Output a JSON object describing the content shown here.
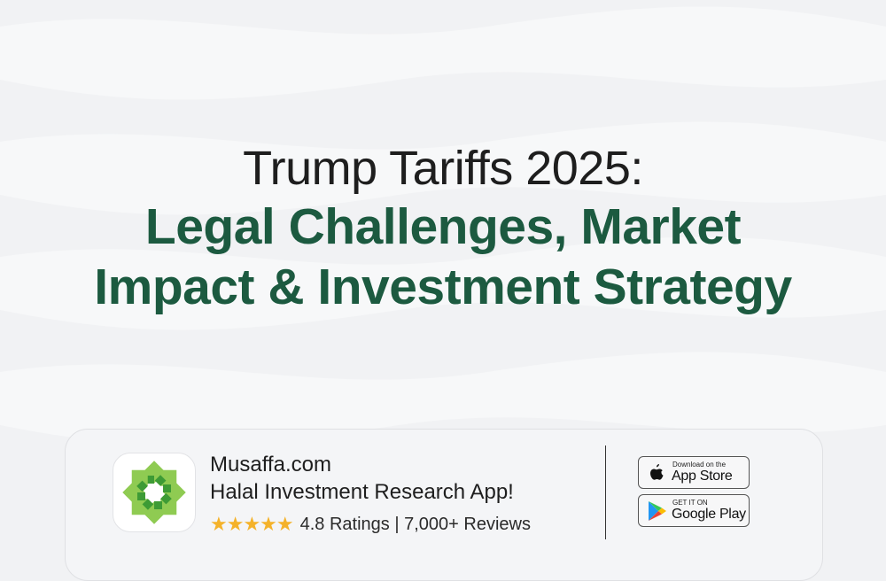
{
  "headline": {
    "line1": "Trump Tariffs 2025:",
    "line2": "Legal Challenges, Market",
    "line3": "Impact & Investment Strategy"
  },
  "colors": {
    "accent": "#1c5a40",
    "star": "#f4b22a",
    "background": "#f1f2f4"
  },
  "app_card": {
    "icon": "musaffa-logo-icon",
    "name": "Musaffa.com",
    "tagline": "Halal Investment Research App!",
    "stars": "★★★★★",
    "rating_value": 4.8,
    "rating_text": "4.8 Ratings | 7,000+ Reviews",
    "app_store": {
      "small": "Download on the",
      "big": "App Store",
      "icon": "apple-icon"
    },
    "google_play": {
      "small": "GET IT ON",
      "big": "Google Play",
      "icon": "google-play-icon"
    }
  }
}
